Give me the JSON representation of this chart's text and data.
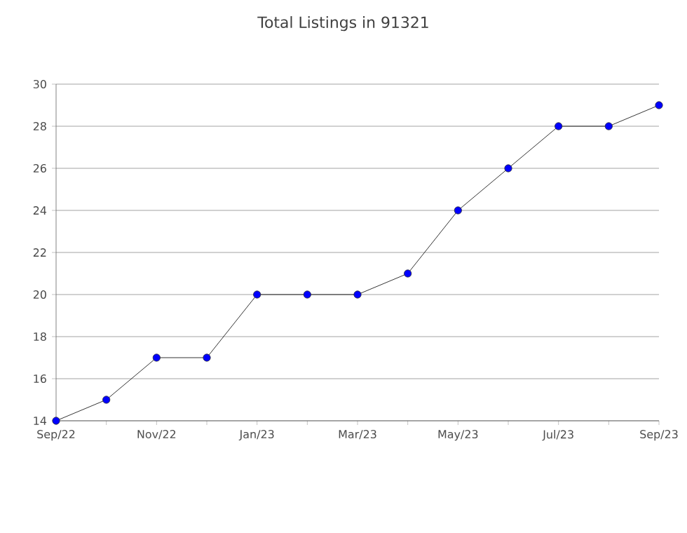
{
  "chart_data": {
    "type": "line",
    "title": "Total Listings in 91321",
    "categories": [
      "Sep/22",
      null,
      "Nov/22",
      null,
      "Jan/23",
      null,
      "Mar/23",
      null,
      "May/23",
      null,
      "Jul/23",
      null,
      "Sep/23"
    ],
    "series": [
      {
        "color": "#0000ff",
        "values": [
          14,
          15,
          17,
          17,
          20,
          20,
          20,
          21,
          24,
          26,
          28,
          28,
          29
        ]
      }
    ],
    "ylim": [
      14,
      30
    ],
    "yticks": [
      14,
      16,
      18,
      20,
      22,
      24,
      26,
      28,
      30
    ],
    "grid": "y",
    "marker": "circle",
    "line_style": "solid"
  }
}
